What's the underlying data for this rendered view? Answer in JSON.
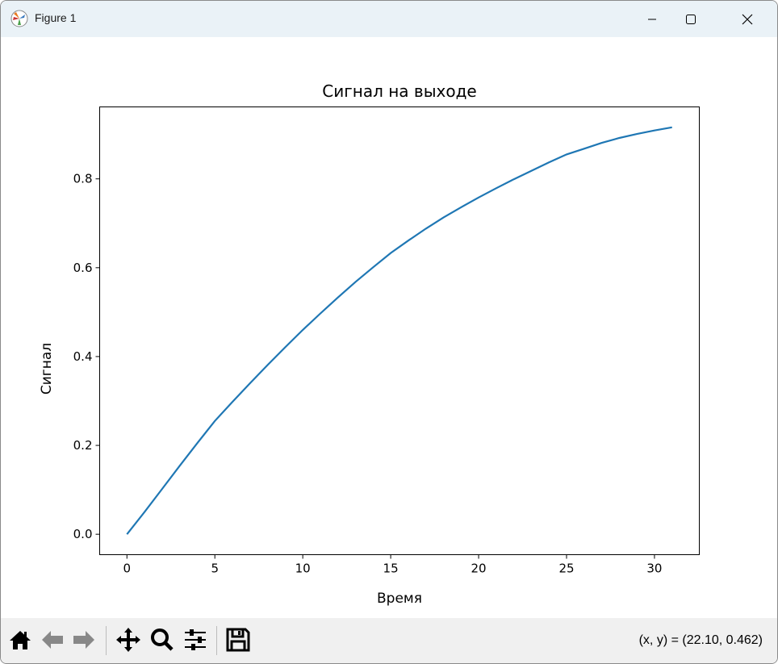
{
  "window": {
    "title": "Figure 1",
    "icons": {
      "app": "matplotlib-icon",
      "minimize": "minimize-icon",
      "maximize": "maximize-icon",
      "close": "close-icon"
    }
  },
  "toolbar": {
    "buttons": [
      {
        "name": "home-button",
        "icon": "home-icon"
      },
      {
        "name": "back-button",
        "icon": "arrow-left-icon"
      },
      {
        "name": "forward-button",
        "icon": "arrow-right-icon"
      },
      {
        "name": "pan-button",
        "icon": "move-icon"
      },
      {
        "name": "zoom-button",
        "icon": "magnifier-icon"
      },
      {
        "name": "configure-subplots-button",
        "icon": "sliders-icon"
      },
      {
        "name": "save-button",
        "icon": "floppy-disk-icon"
      }
    ],
    "coords": "(x, y) = (22.10, 0.462)"
  },
  "chart_data": {
    "type": "line",
    "title": "Сигнал на выходе",
    "xlabel": "Время",
    "ylabel": "Сигнал",
    "xlim": [
      -1.55,
      32.55
    ],
    "ylim": [
      -0.046,
      0.962
    ],
    "xticks": [
      "0",
      "5",
      "10",
      "15",
      "20",
      "25",
      "30"
    ],
    "yticks": [
      "0.0",
      "0.2",
      "0.4",
      "0.6",
      "0.8"
    ],
    "grid": false,
    "line_color": "#1f77b4",
    "series": [
      {
        "x": [
          0,
          1,
          2,
          3,
          4,
          5,
          6,
          7,
          8,
          9,
          10,
          11,
          12,
          13,
          14,
          15,
          16,
          17,
          18,
          19,
          20,
          21,
          22,
          23,
          24,
          25,
          26,
          27,
          28,
          29,
          30,
          31
        ],
        "y": [
          0,
          0.05,
          0.102,
          0.154,
          0.205,
          0.255,
          0.298,
          0.34,
          0.381,
          0.421,
          0.46,
          0.497,
          0.533,
          0.568,
          0.601,
          0.633,
          0.661,
          0.688,
          0.713,
          0.736,
          0.758,
          0.779,
          0.799,
          0.818,
          0.837,
          0.855,
          0.868,
          0.881,
          0.892,
          0.901,
          0.909,
          0.916
        ]
      }
    ]
  }
}
